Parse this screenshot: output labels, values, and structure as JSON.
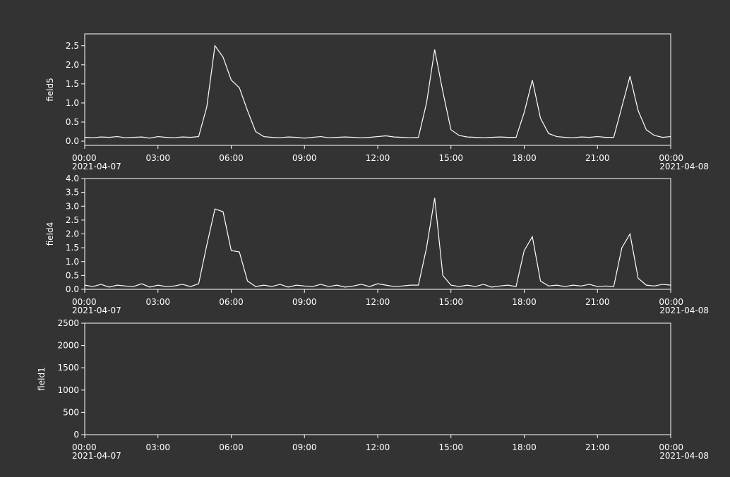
{
  "chart_data": [
    {
      "type": "line",
      "ylabel": "field5",
      "x": [
        "2021-04-07 00:00",
        "2021-04-07 00:20",
        "2021-04-07 00:40",
        "2021-04-07 01:00",
        "2021-04-07 01:20",
        "2021-04-07 01:40",
        "2021-04-07 02:00",
        "2021-04-07 02:20",
        "2021-04-07 02:40",
        "2021-04-07 03:00",
        "2021-04-07 03:20",
        "2021-04-07 03:40",
        "2021-04-07 04:00",
        "2021-04-07 04:20",
        "2021-04-07 04:40",
        "2021-04-07 05:00",
        "2021-04-07 05:20",
        "2021-04-07 05:40",
        "2021-04-07 06:00",
        "2021-04-07 06:20",
        "2021-04-07 06:40",
        "2021-04-07 07:00",
        "2021-04-07 07:20",
        "2021-04-07 07:40",
        "2021-04-07 08:00",
        "2021-04-07 08:20",
        "2021-04-07 08:40",
        "2021-04-07 09:00",
        "2021-04-07 09:20",
        "2021-04-07 09:40",
        "2021-04-07 10:00",
        "2021-04-07 10:20",
        "2021-04-07 10:40",
        "2021-04-07 11:00",
        "2021-04-07 11:20",
        "2021-04-07 11:40",
        "2021-04-07 12:00",
        "2021-04-07 12:20",
        "2021-04-07 12:40",
        "2021-04-07 13:00",
        "2021-04-07 13:20",
        "2021-04-07 13:40",
        "2021-04-07 14:00",
        "2021-04-07 14:20",
        "2021-04-07 14:40",
        "2021-04-07 15:00",
        "2021-04-07 15:20",
        "2021-04-07 15:40",
        "2021-04-07 16:00",
        "2021-04-07 16:20",
        "2021-04-07 16:40",
        "2021-04-07 17:00",
        "2021-04-07 17:20",
        "2021-04-07 17:40",
        "2021-04-07 18:00",
        "2021-04-07 18:20",
        "2021-04-07 18:40",
        "2021-04-07 19:00",
        "2021-04-07 19:20",
        "2021-04-07 19:40",
        "2021-04-07 20:00",
        "2021-04-07 20:20",
        "2021-04-07 20:40",
        "2021-04-07 21:00",
        "2021-04-07 21:20",
        "2021-04-07 21:40",
        "2021-04-07 22:00",
        "2021-04-07 22:20",
        "2021-04-07 22:40",
        "2021-04-07 23:00",
        "2021-04-07 23:20",
        "2021-04-07 23:40",
        "2021-04-08 00:00"
      ],
      "series": [
        {
          "name": "field5",
          "color": "#ffffff",
          "values": [
            0.1,
            0.09,
            0.11,
            0.1,
            0.12,
            0.09,
            0.1,
            0.11,
            0.08,
            0.12,
            0.1,
            0.09,
            0.11,
            0.1,
            0.12,
            0.9,
            2.5,
            2.2,
            1.6,
            1.4,
            0.8,
            0.25,
            0.12,
            0.1,
            0.09,
            0.11,
            0.1,
            0.08,
            0.1,
            0.12,
            0.09,
            0.1,
            0.11,
            0.1,
            0.09,
            0.1,
            0.12,
            0.14,
            0.11,
            0.1,
            0.09,
            0.1,
            1.0,
            2.4,
            1.3,
            0.3,
            0.15,
            0.11,
            0.1,
            0.09,
            0.1,
            0.11,
            0.1,
            0.1,
            0.75,
            1.6,
            0.6,
            0.2,
            0.12,
            0.1,
            0.09,
            0.11,
            0.1,
            0.12,
            0.1,
            0.1,
            0.9,
            1.7,
            0.8,
            0.3,
            0.15,
            0.1,
            0.12
          ]
        }
      ],
      "xlim": [
        "2021-04-07 00:00",
        "2021-04-08 00:00"
      ],
      "xticks": [
        {
          "value": "2021-04-07 00:00",
          "label": "00:00"
        },
        {
          "value": "2021-04-07 03:00",
          "label": "03:00"
        },
        {
          "value": "2021-04-07 06:00",
          "label": "06:00"
        },
        {
          "value": "2021-04-07 09:00",
          "label": "09:00"
        },
        {
          "value": "2021-04-07 12:00",
          "label": "12:00"
        },
        {
          "value": "2021-04-07 15:00",
          "label": "15:00"
        },
        {
          "value": "2021-04-07 18:00",
          "label": "18:00"
        },
        {
          "value": "2021-04-07 21:00",
          "label": "21:00"
        },
        {
          "value": "2021-04-08 00:00",
          "label": "00:00"
        }
      ],
      "xdate_labels": [
        {
          "value": "2021-04-07 00:00",
          "label": "2021-04-07"
        },
        {
          "value": "2021-04-08 00:00",
          "label": "2021-04-08"
        }
      ],
      "ylim": [
        -0.11,
        2.81
      ],
      "yticks": [
        {
          "value": 0,
          "label": "0.0"
        },
        {
          "value": 0.5,
          "label": "0.5"
        },
        {
          "value": 1,
          "label": "1.0"
        },
        {
          "value": 1.5,
          "label": "1.5"
        },
        {
          "value": 2,
          "label": "2.0"
        },
        {
          "value": 2.5,
          "label": "2.5"
        }
      ]
    },
    {
      "type": "line",
      "ylabel": "field4",
      "x": [
        "2021-04-07 00:00",
        "2021-04-07 00:20",
        "2021-04-07 00:40",
        "2021-04-07 01:00",
        "2021-04-07 01:20",
        "2021-04-07 01:40",
        "2021-04-07 02:00",
        "2021-04-07 02:20",
        "2021-04-07 02:40",
        "2021-04-07 03:00",
        "2021-04-07 03:20",
        "2021-04-07 03:40",
        "2021-04-07 04:00",
        "2021-04-07 04:20",
        "2021-04-07 04:40",
        "2021-04-07 05:00",
        "2021-04-07 05:20",
        "2021-04-07 05:40",
        "2021-04-07 06:00",
        "2021-04-07 06:20",
        "2021-04-07 06:40",
        "2021-04-07 07:00",
        "2021-04-07 07:20",
        "2021-04-07 07:40",
        "2021-04-07 08:00",
        "2021-04-07 08:20",
        "2021-04-07 08:40",
        "2021-04-07 09:00",
        "2021-04-07 09:20",
        "2021-04-07 09:40",
        "2021-04-07 10:00",
        "2021-04-07 10:20",
        "2021-04-07 10:40",
        "2021-04-07 11:00",
        "2021-04-07 11:20",
        "2021-04-07 11:40",
        "2021-04-07 12:00",
        "2021-04-07 12:20",
        "2021-04-07 12:40",
        "2021-04-07 13:00",
        "2021-04-07 13:20",
        "2021-04-07 13:40",
        "2021-04-07 14:00",
        "2021-04-07 14:20",
        "2021-04-07 14:40",
        "2021-04-07 15:00",
        "2021-04-07 15:20",
        "2021-04-07 15:40",
        "2021-04-07 16:00",
        "2021-04-07 16:20",
        "2021-04-07 16:40",
        "2021-04-07 17:00",
        "2021-04-07 17:20",
        "2021-04-07 17:40",
        "2021-04-07 18:00",
        "2021-04-07 18:20",
        "2021-04-07 18:40",
        "2021-04-07 19:00",
        "2021-04-07 19:20",
        "2021-04-07 19:40",
        "2021-04-07 20:00",
        "2021-04-07 20:20",
        "2021-04-07 20:40",
        "2021-04-07 21:00",
        "2021-04-07 21:20",
        "2021-04-07 21:40",
        "2021-04-07 22:00",
        "2021-04-07 22:20",
        "2021-04-07 22:40",
        "2021-04-07 23:00",
        "2021-04-07 23:20",
        "2021-04-07 23:40",
        "2021-04-08 00:00"
      ],
      "series": [
        {
          "name": "field4",
          "color": "#ffffff",
          "values": [
            0.15,
            0.1,
            0.18,
            0.08,
            0.15,
            0.12,
            0.1,
            0.2,
            0.08,
            0.15,
            0.1,
            0.12,
            0.18,
            0.1,
            0.2,
            1.6,
            2.9,
            2.8,
            1.4,
            1.35,
            0.3,
            0.1,
            0.15,
            0.1,
            0.18,
            0.08,
            0.15,
            0.12,
            0.1,
            0.18,
            0.1,
            0.15,
            0.08,
            0.12,
            0.18,
            0.1,
            0.2,
            0.15,
            0.1,
            0.12,
            0.15,
            0.15,
            1.5,
            3.3,
            0.5,
            0.15,
            0.1,
            0.15,
            0.1,
            0.18,
            0.08,
            0.12,
            0.15,
            0.1,
            1.4,
            1.9,
            0.3,
            0.12,
            0.15,
            0.1,
            0.15,
            0.12,
            0.18,
            0.1,
            0.12,
            0.1,
            1.5,
            2.0,
            0.4,
            0.15,
            0.12,
            0.18,
            0.15
          ]
        }
      ],
      "xlim": [
        "2021-04-07 00:00",
        "2021-04-08 00:00"
      ],
      "xticks": [
        {
          "value": "2021-04-07 00:00",
          "label": "00:00"
        },
        {
          "value": "2021-04-07 03:00",
          "label": "03:00"
        },
        {
          "value": "2021-04-07 06:00",
          "label": "06:00"
        },
        {
          "value": "2021-04-07 09:00",
          "label": "09:00"
        },
        {
          "value": "2021-04-07 12:00",
          "label": "12:00"
        },
        {
          "value": "2021-04-07 15:00",
          "label": "15:00"
        },
        {
          "value": "2021-04-07 18:00",
          "label": "18:00"
        },
        {
          "value": "2021-04-07 21:00",
          "label": "21:00"
        },
        {
          "value": "2021-04-08 00:00",
          "label": "00:00"
        }
      ],
      "xdate_labels": [
        {
          "value": "2021-04-07 00:00",
          "label": "2021-04-07"
        },
        {
          "value": "2021-04-08 00:00",
          "label": "2021-04-08"
        }
      ],
      "ylim": [
        0,
        4
      ],
      "yticks": [
        {
          "value": 0,
          "label": "0.0"
        },
        {
          "value": 0.5,
          "label": "0.5"
        },
        {
          "value": 1,
          "label": "1.0"
        },
        {
          "value": 1.5,
          "label": "1.5"
        },
        {
          "value": 2,
          "label": "2.0"
        },
        {
          "value": 2.5,
          "label": "2.5"
        },
        {
          "value": 3,
          "label": "3.0"
        },
        {
          "value": 3.5,
          "label": "3.5"
        },
        {
          "value": 4,
          "label": "4.0"
        }
      ]
    },
    {
      "type": "line",
      "ylabel": "field1",
      "xlim": [
        "2021-04-07 00:00",
        "2021-04-08 00:00"
      ],
      "xticks": [
        {
          "value": "2021-04-07 00:00",
          "label": "00:00"
        },
        {
          "value": "2021-04-07 03:00",
          "label": "03:00"
        },
        {
          "value": "2021-04-07 06:00",
          "label": "06:00"
        },
        {
          "value": "2021-04-07 09:00",
          "label": "09:00"
        },
        {
          "value": "2021-04-07 12:00",
          "label": "12:00"
        },
        {
          "value": "2021-04-07 15:00",
          "label": "15:00"
        },
        {
          "value": "2021-04-07 18:00",
          "label": "18:00"
        },
        {
          "value": "2021-04-07 21:00",
          "label": "21:00"
        },
        {
          "value": "2021-04-08 00:00",
          "label": "00:00"
        }
      ],
      "xdate_labels": [
        {
          "value": "2021-04-07 00:00",
          "label": "2021-04-07"
        },
        {
          "value": "2021-04-08 00:00",
          "label": "2021-04-08"
        }
      ],
      "ylim": [
        0,
        2500
      ],
      "yticks": [
        0,
        500,
        1000,
        1500,
        2000,
        2500
      ]
    }
  ]
}
